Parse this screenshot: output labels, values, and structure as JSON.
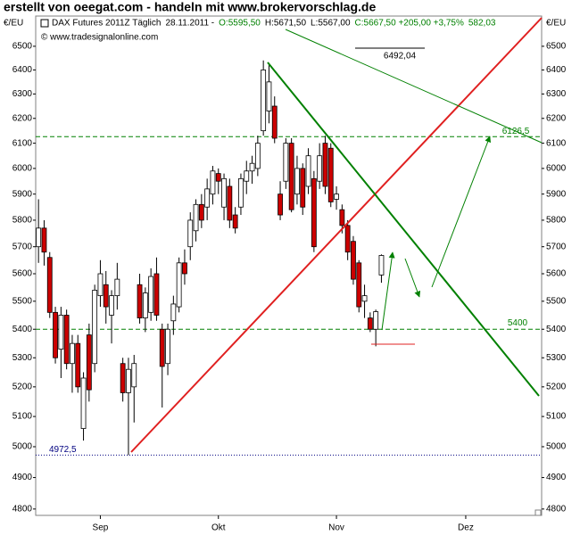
{
  "banner": "erstellt von oeegat.com - handeln mit www.brokervorschlag.de",
  "chart_data": {
    "type": "candlestick",
    "header": [
      {
        "text": "DAX Futures 2011Z Täglich",
        "color": "#000000"
      },
      {
        "text": "28.11.2011 -",
        "color": "#000000"
      },
      {
        "text": "O:5595,50",
        "color": "#008000"
      },
      {
        "text": "H:5671,50",
        "color": "#000000"
      },
      {
        "text": "L:5567,00",
        "color": "#000000"
      },
      {
        "text": "C:5667,50 +205,00 +3,75%",
        "color": "#008000"
      },
      {
        "text": "582,03",
        "color": "#008000"
      }
    ],
    "source": "© www.tradesignalonline.com",
    "y_unit": "€/EU",
    "log_scale": true,
    "up_color": "#ffffff",
    "down_color": "#cc0000",
    "categories": [
      null,
      null,
      null,
      null,
      null,
      null,
      null,
      null,
      null,
      null,
      null,
      "Sep",
      null,
      null,
      null,
      null,
      null,
      null,
      null,
      null,
      null,
      null,
      null,
      null,
      null,
      null,
      null,
      null,
      null,
      null,
      null,
      null,
      "Okt",
      null,
      null,
      null,
      null,
      null,
      null,
      null,
      null,
      null,
      null,
      null,
      null,
      null,
      null,
      null,
      null,
      null,
      null,
      null,
      null,
      "Nov",
      null,
      null,
      null,
      null,
      null,
      null,
      null,
      null,
      null,
      null,
      null,
      null,
      null,
      null,
      null,
      null,
      null,
      null,
      null,
      null,
      null,
      null,
      "Dez",
      null,
      null,
      null,
      null,
      null,
      null,
      null,
      null,
      null,
      null,
      null,
      null,
      null
    ],
    "open": [
      5700,
      5770,
      5660,
      5460,
      5330,
      5450,
      5280,
      5350,
      5060,
      5380,
      5280,
      5520,
      5560,
      5450,
      5520,
      5280,
      5180,
      5200,
      5560,
      5440,
      5460,
      5600,
      5400,
      5280,
      5430,
      5480,
      5640,
      5700,
      5760,
      5860,
      5850,
      5900,
      5980,
      5850,
      5930,
      5820,
      5850,
      5950,
      5990,
      6000,
      6150,
      6230,
      6250,
      5900,
      5950,
      6100,
      5900,
      6000,
      5930,
      5960,
      5950,
      6100,
      6080,
      5880,
      5840,
      5780,
      5720,
      5640,
      5500,
      5440,
      5400,
      5595.5,
      null,
      null,
      null,
      null,
      null,
      null,
      null,
      null,
      null,
      null,
      null,
      null,
      null,
      null,
      null,
      null,
      null,
      null,
      null,
      null,
      null,
      null,
      null,
      null,
      null,
      null,
      null,
      null
    ],
    "high": [
      5880,
      5800,
      5680,
      5480,
      5480,
      5470,
      5380,
      5380,
      5250,
      5420,
      5560,
      5650,
      5610,
      5540,
      5640,
      5300,
      5300,
      5310,
      5600,
      5550,
      5620,
      5660,
      5420,
      5420,
      5520,
      5660,
      5690,
      5830,
      5880,
      5900,
      5960,
      6010,
      6000,
      5980,
      5960,
      5850,
      5980,
      6030,
      6050,
      6130,
      6440,
      6420,
      6290,
      5950,
      6120,
      6120,
      6050,
      6020,
      6080,
      5990,
      6100,
      6130,
      6100,
      5930,
      5860,
      5800,
      5740,
      5650,
      5560,
      5460,
      5470,
      5671.5,
      null,
      null,
      null,
      null,
      null,
      null,
      null,
      null,
      null,
      null,
      null,
      null,
      null,
      null,
      null,
      null,
      null,
      null,
      null,
      null,
      null,
      null,
      null,
      null,
      null,
      null,
      null,
      null
    ],
    "low": [
      5640,
      5630,
      5440,
      5280,
      5230,
      5260,
      5180,
      5180,
      5020,
      5150,
      5250,
      5480,
      5420,
      5350,
      5470,
      5150,
      4972.5,
      5080,
      5420,
      5390,
      5430,
      5430,
      5130,
      5240,
      5380,
      5460,
      5560,
      5650,
      5720,
      5770,
      5800,
      5860,
      5900,
      5800,
      5770,
      5750,
      5820,
      5900,
      5940,
      5970,
      6130,
      6180,
      6100,
      5800,
      5920,
      5830,
      5860,
      5820,
      5900,
      5680,
      5920,
      5900,
      5850,
      5840,
      5750,
      5650,
      5560,
      5460,
      5440,
      5390,
      5340,
      5567,
      null,
      null,
      null,
      null,
      null,
      null,
      null,
      null,
      null,
      null,
      null,
      null,
      null,
      null,
      null,
      null,
      null,
      null,
      null,
      null,
      null,
      null,
      null,
      null,
      null,
      null,
      null,
      null
    ],
    "close": [
      5770,
      5680,
      5460,
      5300,
      5450,
      5280,
      5350,
      5200,
      5230,
      5190,
      5540,
      5600,
      5480,
      5520,
      5580,
      5180,
      5260,
      5280,
      5440,
      5530,
      5590,
      5450,
      5270,
      5400,
      5490,
      5640,
      5600,
      5800,
      5860,
      5800,
      5920,
      5990,
      5950,
      5960,
      5800,
      5770,
      5960,
      5990,
      6020,
      6100,
      6400,
      6350,
      6120,
      5820,
      6100,
      5840,
      6000,
      5850,
      6050,
      5700,
      6050,
      5930,
      5870,
      5900,
      5780,
      5680,
      5580,
      5480,
      5520,
      5400,
      5462.5,
      5667.5,
      null,
      null,
      null,
      null,
      null,
      null,
      null,
      null,
      null,
      null,
      null,
      null,
      null,
      null,
      null,
      null,
      null,
      null,
      null,
      null,
      null,
      null,
      null,
      null,
      null,
      null,
      null,
      null
    ],
    "ylim": [
      4780,
      6630
    ],
    "yticks": [
      4800,
      4900,
      5000,
      5100,
      5200,
      5300,
      5400,
      5500,
      5600,
      5700,
      5800,
      5900,
      6000,
      6100,
      6200,
      6300,
      6400,
      6500
    ],
    "levels": [
      {
        "value": 6492.04,
        "label": "6492,04",
        "color": "#000000"
      },
      {
        "value": 6126.5,
        "label": "6126,5",
        "color": "#008000"
      },
      {
        "value": 5400,
        "label": "5400",
        "color": "#008000"
      },
      {
        "value": 4972.5,
        "label": "4972,5",
        "color": "#000080"
      }
    ]
  }
}
